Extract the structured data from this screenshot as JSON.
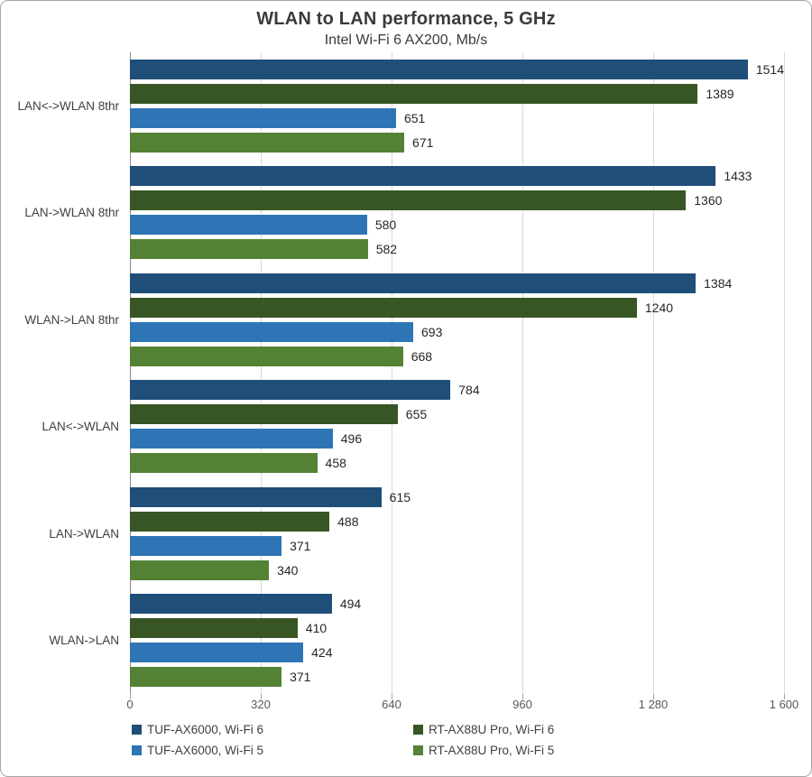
{
  "chart": {
    "title": "WLAN to LAN performance, 5 GHz",
    "subtitle": "Intel Wi-Fi 6 AX200, Mb/s"
  },
  "chart_data": {
    "type": "bar",
    "orientation": "horizontal",
    "title": "WLAN to LAN performance, 5 GHz",
    "subtitle": "Intel Wi-Fi 6 AX200, Mb/s",
    "xlabel": "",
    "ylabel": "",
    "xlim": [
      0,
      1600
    ],
    "x_tick_values": [
      0,
      320,
      640,
      960,
      1280,
      1600
    ],
    "x_tick_labels": [
      "0",
      "320",
      "640",
      "960",
      "1 280",
      "1 600"
    ],
    "grid": "vertical",
    "value_labels": true,
    "legend_position": "bottom",
    "categories": [
      "LAN<->WLAN 8thr",
      "LAN->WLAN 8thr",
      "WLAN->LAN 8thr",
      "LAN<->WLAN",
      "LAN->WLAN",
      "WLAN->LAN"
    ],
    "series": [
      {
        "name": "TUF-AX6000, Wi-Fi 6",
        "color": "#1f4e79",
        "values": [
          1514,
          1433,
          1384,
          784,
          615,
          494
        ]
      },
      {
        "name": "RT-AX88U Pro, Wi-Fi 6",
        "color": "#375623",
        "values": [
          1389,
          1360,
          1240,
          655,
          488,
          410
        ]
      },
      {
        "name": "TUF-AX6000, Wi-Fi 5",
        "color": "#2e75b6",
        "values": [
          651,
          580,
          693,
          496,
          371,
          424
        ]
      },
      {
        "name": "RT-AX88U Pro, Wi-Fi 5",
        "color": "#548235",
        "values": [
          671,
          582,
          668,
          458,
          340,
          371
        ]
      }
    ]
  }
}
